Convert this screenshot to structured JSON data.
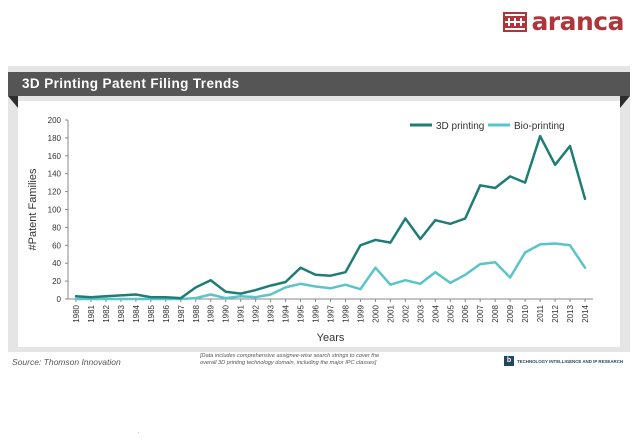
{
  "brand": {
    "name": "aranca",
    "accent": "#b1343a"
  },
  "slide": {
    "title": "3D Printing Patent Filing Trends"
  },
  "footer": {
    "source": "Source: Thomson Innovation",
    "note_line1": "[Data includes comprehensive assignee-wise search strings to cover the",
    "note_line2": "overall 3D printing technology domain, including the major IPC classes]",
    "tagline": "TECHNOLOGY INTELLIGENCE AND IP RESEARCH",
    "icon_name": "b-logo-icon"
  },
  "chart_data": {
    "type": "line",
    "title": "3D Printing Patent Filing Trends",
    "xlabel": "Years",
    "ylabel": "#Patent Families",
    "ylim": [
      0,
      200
    ],
    "yticks": [
      0,
      20,
      40,
      60,
      80,
      100,
      120,
      140,
      160,
      180,
      200
    ],
    "grid": false,
    "legend_position": "top-right",
    "categories": [
      "1980",
      "1981",
      "1982",
      "1983",
      "1984",
      "1985",
      "1986",
      "1987",
      "1988",
      "1989",
      "1990",
      "1991",
      "1992",
      "1993",
      "1994",
      "1995",
      "1996",
      "1997",
      "1998",
      "1999",
      "2000",
      "2001",
      "2002",
      "2003",
      "2004",
      "2005",
      "2006",
      "2007",
      "2008",
      "2009",
      "2010",
      "2011",
      "2012",
      "2013",
      "2014"
    ],
    "series": [
      {
        "name": "3D printing",
        "color": "#1f7d76",
        "values": [
          3,
          2,
          3,
          4,
          5,
          2,
          2,
          1,
          13,
          21,
          8,
          6,
          10,
          15,
          19,
          35,
          27,
          26,
          30,
          60,
          66,
          63,
          90,
          67,
          88,
          84,
          90,
          127,
          124,
          137,
          130,
          182,
          150,
          171,
          112
        ]
      },
      {
        "name": "Bio-printing",
        "color": "#5bc4c9",
        "values": [
          0,
          0,
          0,
          0,
          0,
          0,
          0,
          0,
          1,
          5,
          1,
          3,
          2,
          5,
          13,
          17,
          14,
          12,
          16,
          11,
          35,
          16,
          21,
          17,
          30,
          18,
          27,
          39,
          41,
          24,
          52,
          61,
          62,
          60,
          35
        ]
      }
    ]
  }
}
